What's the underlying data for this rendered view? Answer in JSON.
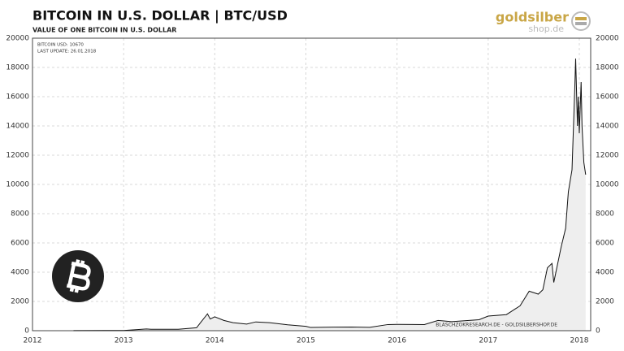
{
  "chart_data": {
    "type": "area",
    "title": "BITCOIN  IN  U.S. DOLLAR  |  BTC/USD",
    "subtitle": "VALUE OF ONE BITCOIN IN U.S. DOLLAR",
    "annotations": [
      "BITCOIN USD: 10670",
      "LAST UPDATE: 26.01.2018"
    ],
    "source": "BLASCHZOKRESEARCH.DE  -  GOLDSILBERSHOP.DE",
    "logo": [
      "goldsilber",
      "shop.de"
    ],
    "x": [
      2012.45,
      2012.8,
      2013.0,
      2013.25,
      2013.3,
      2013.6,
      2013.8,
      2013.85,
      2013.92,
      2013.95,
      2014.0,
      2014.1,
      2014.2,
      2014.35,
      2014.45,
      2014.6,
      2014.8,
      2015.0,
      2015.05,
      2015.3,
      2015.5,
      2015.7,
      2015.9,
      2016.0,
      2016.3,
      2016.45,
      2016.6,
      2016.9,
      2017.0,
      2017.2,
      2017.35,
      2017.45,
      2017.55,
      2017.6,
      2017.65,
      2017.7,
      2017.72,
      2017.8,
      2017.85,
      2017.88,
      2017.92,
      2017.95,
      2017.96,
      2017.98,
      2017.99,
      2018.0,
      2018.02,
      2018.03,
      2018.05,
      2018.07
    ],
    "series": [
      {
        "name": "BTC/USD",
        "color": "#111111",
        "values": [
          5,
          12,
          13,
          120,
          100,
          100,
          200,
          600,
          1150,
          800,
          950,
          700,
          550,
          450,
          600,
          550,
          400,
          300,
          220,
          240,
          250,
          230,
          420,
          430,
          420,
          700,
          620,
          750,
          1000,
          1100,
          1700,
          2700,
          2500,
          2800,
          4300,
          4600,
          3300,
          5700,
          7000,
          9500,
          11000,
          16500,
          18600,
          14000,
          16000,
          13500,
          17000,
          14000,
          11500,
          10670
        ]
      }
    ],
    "xlim": [
      2012,
      2018.125
    ],
    "xticks": [
      2012,
      2013,
      2014,
      2015,
      2016,
      2017,
      2018
    ],
    "ylim": [
      0,
      20000
    ],
    "yticks": [
      0,
      2000,
      4000,
      6000,
      8000,
      10000,
      12000,
      14000,
      16000,
      18000,
      20000
    ],
    "grid": true,
    "fill": "#eeeeee"
  }
}
